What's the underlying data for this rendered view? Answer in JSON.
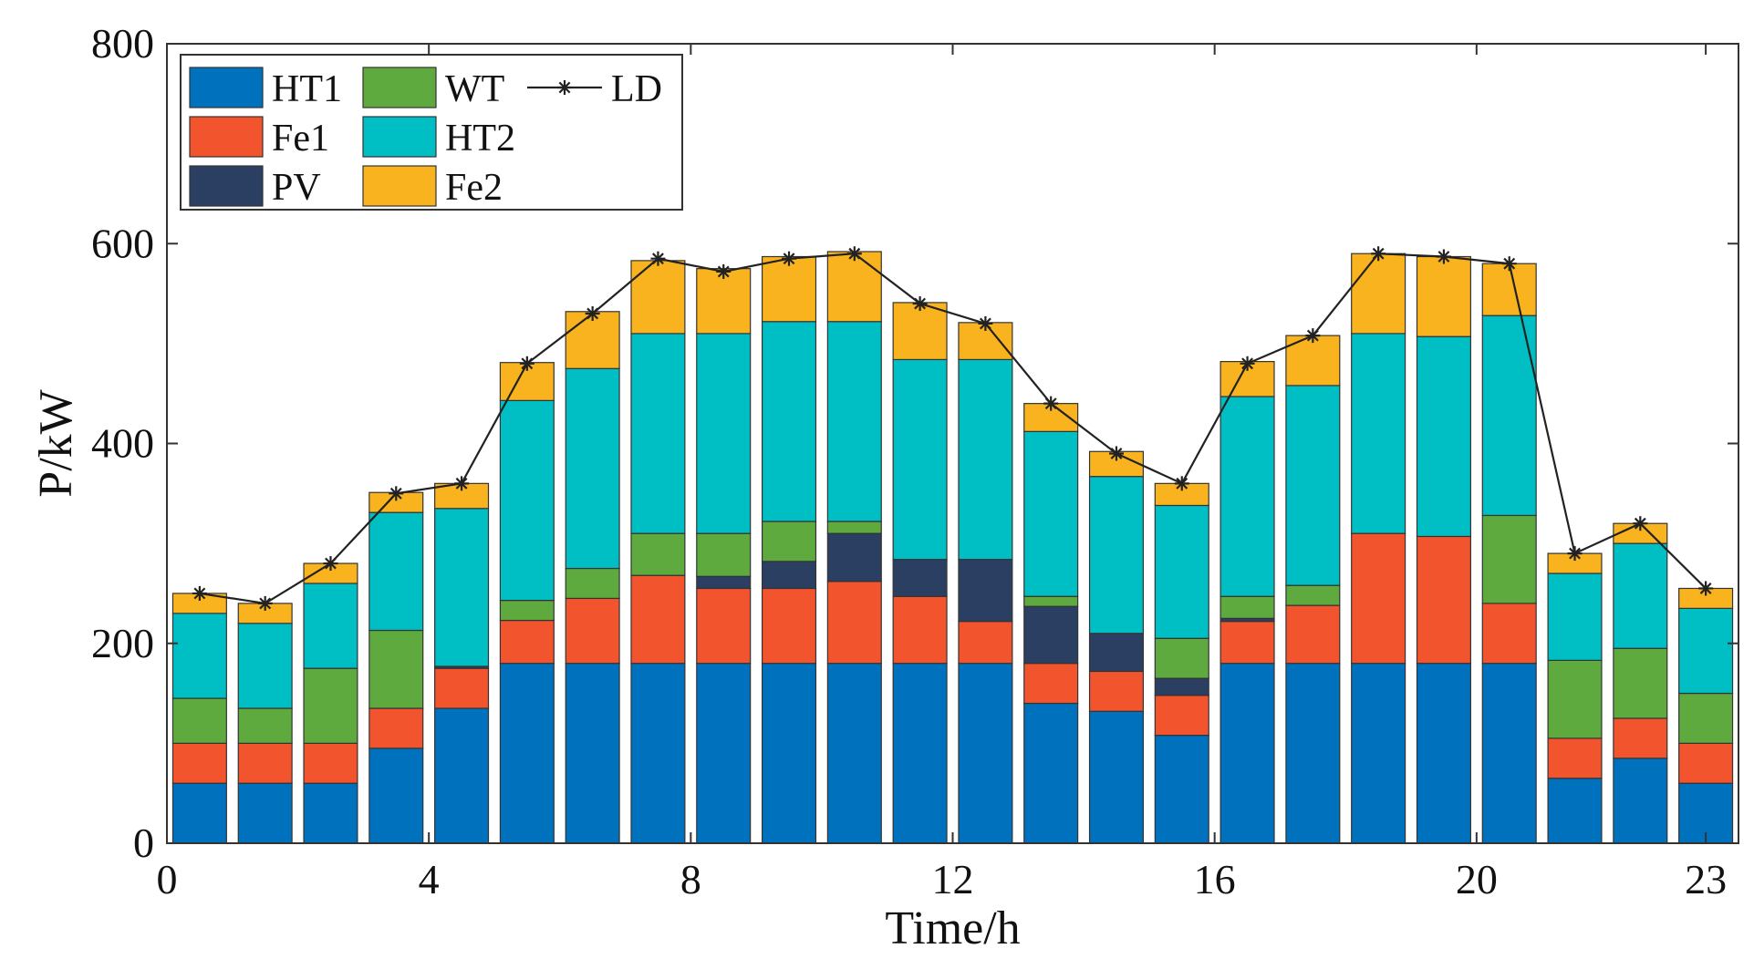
{
  "chart_data": {
    "type": "stacked-bar",
    "title": "",
    "xlabel": "Time/h",
    "ylabel": "P/kW",
    "ylim": [
      0,
      800
    ],
    "xlim": [
      0,
      23
    ],
    "y_ticks": [
      0,
      200,
      400,
      600,
      800
    ],
    "x_ticks": [
      0,
      4,
      8,
      12,
      16,
      20,
      23
    ],
    "hours": [
      0,
      1,
      2,
      3,
      4,
      5,
      6,
      7,
      8,
      9,
      10,
      11,
      12,
      13,
      14,
      15,
      16,
      17,
      18,
      19,
      20,
      21,
      22,
      23
    ],
    "series": [
      {
        "name": "HT1",
        "color": "#0072BD",
        "values": [
          60,
          60,
          60,
          95,
          135,
          180,
          180,
          180,
          180,
          180,
          180,
          180,
          180,
          140,
          132,
          108,
          180,
          180,
          180,
          180,
          180,
          65,
          85,
          60
        ]
      },
      {
        "name": "Fe1",
        "color": "#F2542D",
        "values": [
          40,
          40,
          40,
          40,
          40,
          43,
          65,
          88,
          75,
          75,
          82,
          67,
          42,
          40,
          40,
          40,
          42,
          58,
          130,
          127,
          60,
          40,
          40,
          40
        ]
      },
      {
        "name": "PV",
        "color": "#2B3F63",
        "values": [
          0,
          0,
          0,
          0,
          2,
          0,
          0,
          0,
          12,
          27,
          48,
          37,
          62,
          57,
          38,
          17,
          3,
          0,
          0,
          0,
          0,
          0,
          0,
          0
        ]
      },
      {
        "name": "WT",
        "color": "#5EAA3F",
        "values": [
          45,
          35,
          75,
          78,
          0,
          20,
          30,
          42,
          43,
          40,
          12,
          0,
          0,
          10,
          0,
          40,
          22,
          20,
          0,
          0,
          88,
          78,
          70,
          50
        ]
      },
      {
        "name": "HT2",
        "color": "#00BFC4",
        "values": [
          85,
          85,
          85,
          118,
          158,
          200,
          200,
          200,
          200,
          200,
          200,
          200,
          200,
          165,
          157,
          133,
          200,
          200,
          200,
          200,
          200,
          87,
          105,
          85
        ]
      },
      {
        "name": "Fe2",
        "color": "#F9B31E",
        "values": [
          20,
          20,
          20,
          20,
          25,
          38,
          57,
          73,
          65,
          65,
          70,
          57,
          37,
          28,
          25,
          22,
          35,
          50,
          80,
          80,
          52,
          20,
          20,
          20
        ]
      }
    ],
    "line": {
      "name": "LD",
      "color": "#222222",
      "marker": "*",
      "values": [
        250,
        240,
        280,
        350,
        360,
        480,
        530,
        585,
        572,
        585,
        590,
        540,
        520,
        440,
        390,
        360,
        480,
        508,
        590,
        587,
        580,
        290,
        320,
        255
      ]
    },
    "legend": {
      "position": "top-left",
      "entries": [
        "HT1",
        "WT",
        "LD",
        "Fe1",
        "HT2",
        "PV",
        "Fe2"
      ]
    }
  }
}
